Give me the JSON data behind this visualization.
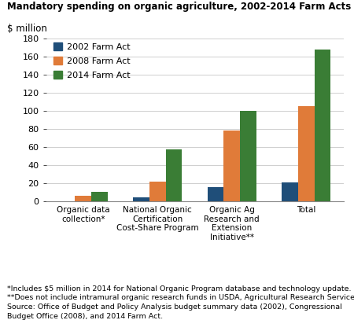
{
  "title": "Mandatory spending on organic agriculture, 2002-2014 Farm Acts",
  "ylabel": "$ million",
  "ylim": [
    0,
    180
  ],
  "yticks": [
    0,
    20,
    40,
    60,
    80,
    100,
    120,
    140,
    160,
    180
  ],
  "categories": [
    "Organic data\ncollection*",
    "National Organic\nCertification\nCost-Share Program",
    "Organic Ag\nResearch and\nExtension\nInitiative**",
    "Total"
  ],
  "series": {
    "2002 Farm Act": [
      0,
      5,
      16,
      21
    ],
    "2008 Farm Act": [
      6,
      22,
      78,
      105
    ],
    "2014 Farm Act": [
      11,
      58,
      100,
      168
    ]
  },
  "colors": {
    "2002 Farm Act": "#1f4e79",
    "2008 Farm Act": "#e07b39",
    "2014 Farm Act": "#3a7d35"
  },
  "legend_labels": [
    "2002 Farm Act",
    "2008 Farm Act",
    "2014 Farm Act"
  ],
  "footnote1": "*Includes $5 million in 2014 for National Organic Program database and technology update.",
  "footnote2": "**Does not include intramural organic research funds in USDA, Agricultural Research Service.",
  "footnote3": "Source: Office of Budget and Policy Analysis budget summary data (2002), Congressional",
  "footnote4": "Budget Office (2008), and 2014 Farm Act.",
  "bar_width": 0.22
}
